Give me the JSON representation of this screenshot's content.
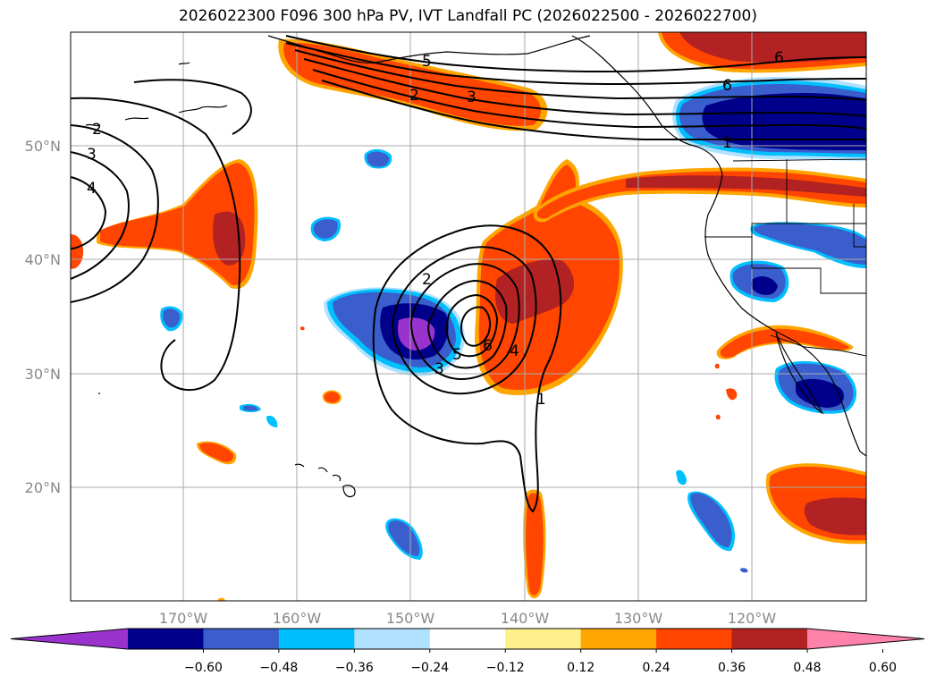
{
  "title": "2026022300 F096 300 hPa PV, IVT Landfall PC (2026022500 - 2026022700)",
  "axes": {
    "lat_ticks": [
      "50°N",
      "40°N",
      "30°N",
      "20°N"
    ],
    "lon_ticks": [
      "170°W",
      "160°W",
      "150°W",
      "140°W",
      "130°W",
      "120°W"
    ]
  },
  "colorbar": {
    "tick_labels": [
      "−0.60",
      "−0.48",
      "−0.36",
      "−0.24",
      "−0.12",
      "0.12",
      "0.24",
      "0.36",
      "0.48",
      "0.60"
    ],
    "colors": [
      "#9a32cd",
      "#00008b",
      "#3a5fcd",
      "#00bfff",
      "#b0e2ff",
      "#ffffff",
      "#fff08c",
      "#ffa500",
      "#ff4500",
      "#b22222",
      "#ff82ab"
    ]
  },
  "contour_labels": [
    "1",
    "2",
    "3",
    "4",
    "5",
    "6"
  ],
  "colors": {
    "purple": "#9a32cd",
    "navy": "#00008b",
    "blue": "#3a5fcd",
    "cyan": "#00bfff",
    "lightblue": "#b0e2ff",
    "yellow": "#fff08c",
    "orange": "#ffa500",
    "redorange": "#ff4500",
    "firebrick": "#b22222",
    "pink": "#ff82ab"
  }
}
